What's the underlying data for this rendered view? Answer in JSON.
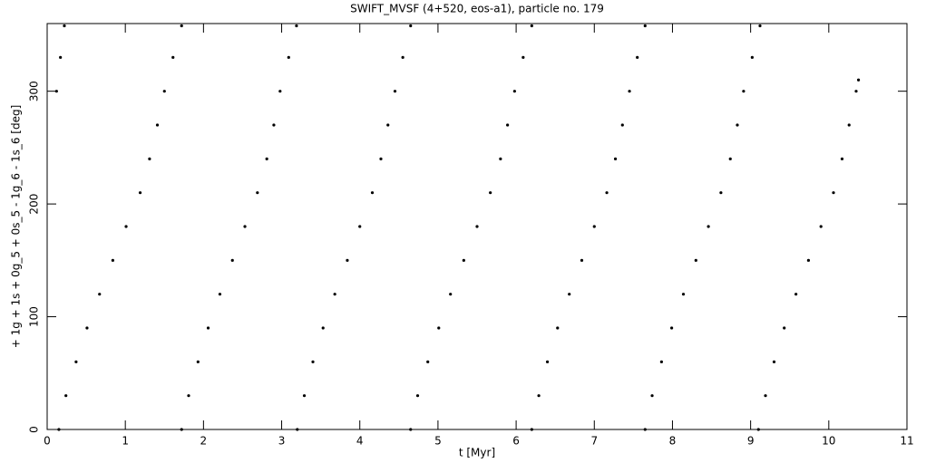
{
  "chart_data": {
    "type": "scatter",
    "title": "SWIFT_MVSF (4+520, eos-a1), particle no. 179",
    "x_label": "t [Myr]",
    "y_label": "+ 1g + 1s + 0g_5 + 0s_5 - 1g_6 - 1s_6 [deg]",
    "color": "#000000",
    "xlim": [
      0,
      11
    ],
    "ylim": [
      0,
      360
    ],
    "xticks": [
      0,
      1,
      2,
      3,
      4,
      5,
      6,
      7,
      8,
      9,
      10,
      11
    ],
    "yticks": [
      0,
      100,
      200,
      300
    ],
    "x": [
      0.12,
      0.17,
      0.22,
      0.15,
      0.24,
      0.37,
      0.51,
      0.67,
      0.84,
      1.01,
      1.19,
      1.31,
      1.41,
      1.5,
      1.61,
      1.72,
      1.72,
      1.81,
      1.93,
      2.06,
      2.21,
      2.37,
      2.53,
      2.69,
      2.81,
      2.9,
      2.98,
      3.09,
      3.19,
      3.2,
      3.29,
      3.4,
      3.53,
      3.68,
      3.84,
      4.0,
      4.16,
      4.27,
      4.36,
      4.45,
      4.55,
      4.65,
      4.65,
      4.74,
      4.87,
      5.01,
      5.16,
      5.33,
      5.5,
      5.67,
      5.8,
      5.89,
      5.98,
      6.09,
      6.2,
      6.2,
      6.29,
      6.4,
      6.53,
      6.68,
      6.84,
      7.0,
      7.16,
      7.27,
      7.36,
      7.45,
      7.55,
      7.65,
      7.65,
      7.74,
      7.86,
      7.99,
      8.14,
      8.3,
      8.46,
      8.62,
      8.74,
      8.83,
      8.91,
      9.02,
      9.12,
      9.1,
      9.19,
      9.3,
      9.43,
      9.58,
      9.74,
      9.9,
      10.06,
      10.17,
      10.26,
      10.35,
      10.38
    ],
    "y": [
      300,
      330,
      358,
      0,
      30,
      60,
      90,
      120,
      150,
      180,
      210,
      240,
      270,
      300,
      330,
      358,
      0,
      30,
      60,
      90,
      120,
      150,
      180,
      210,
      240,
      270,
      300,
      330,
      358,
      0,
      30,
      60,
      90,
      120,
      150,
      180,
      210,
      240,
      270,
      300,
      330,
      358,
      0,
      30,
      60,
      90,
      120,
      150,
      180,
      210,
      240,
      270,
      300,
      330,
      358,
      0,
      30,
      60,
      90,
      120,
      150,
      180,
      210,
      240,
      270,
      300,
      330,
      358,
      0,
      30,
      60,
      90,
      120,
      150,
      180,
      210,
      240,
      270,
      300,
      330,
      358,
      0,
      30,
      60,
      90,
      120,
      150,
      180,
      210,
      240,
      270,
      300,
      310
    ]
  }
}
